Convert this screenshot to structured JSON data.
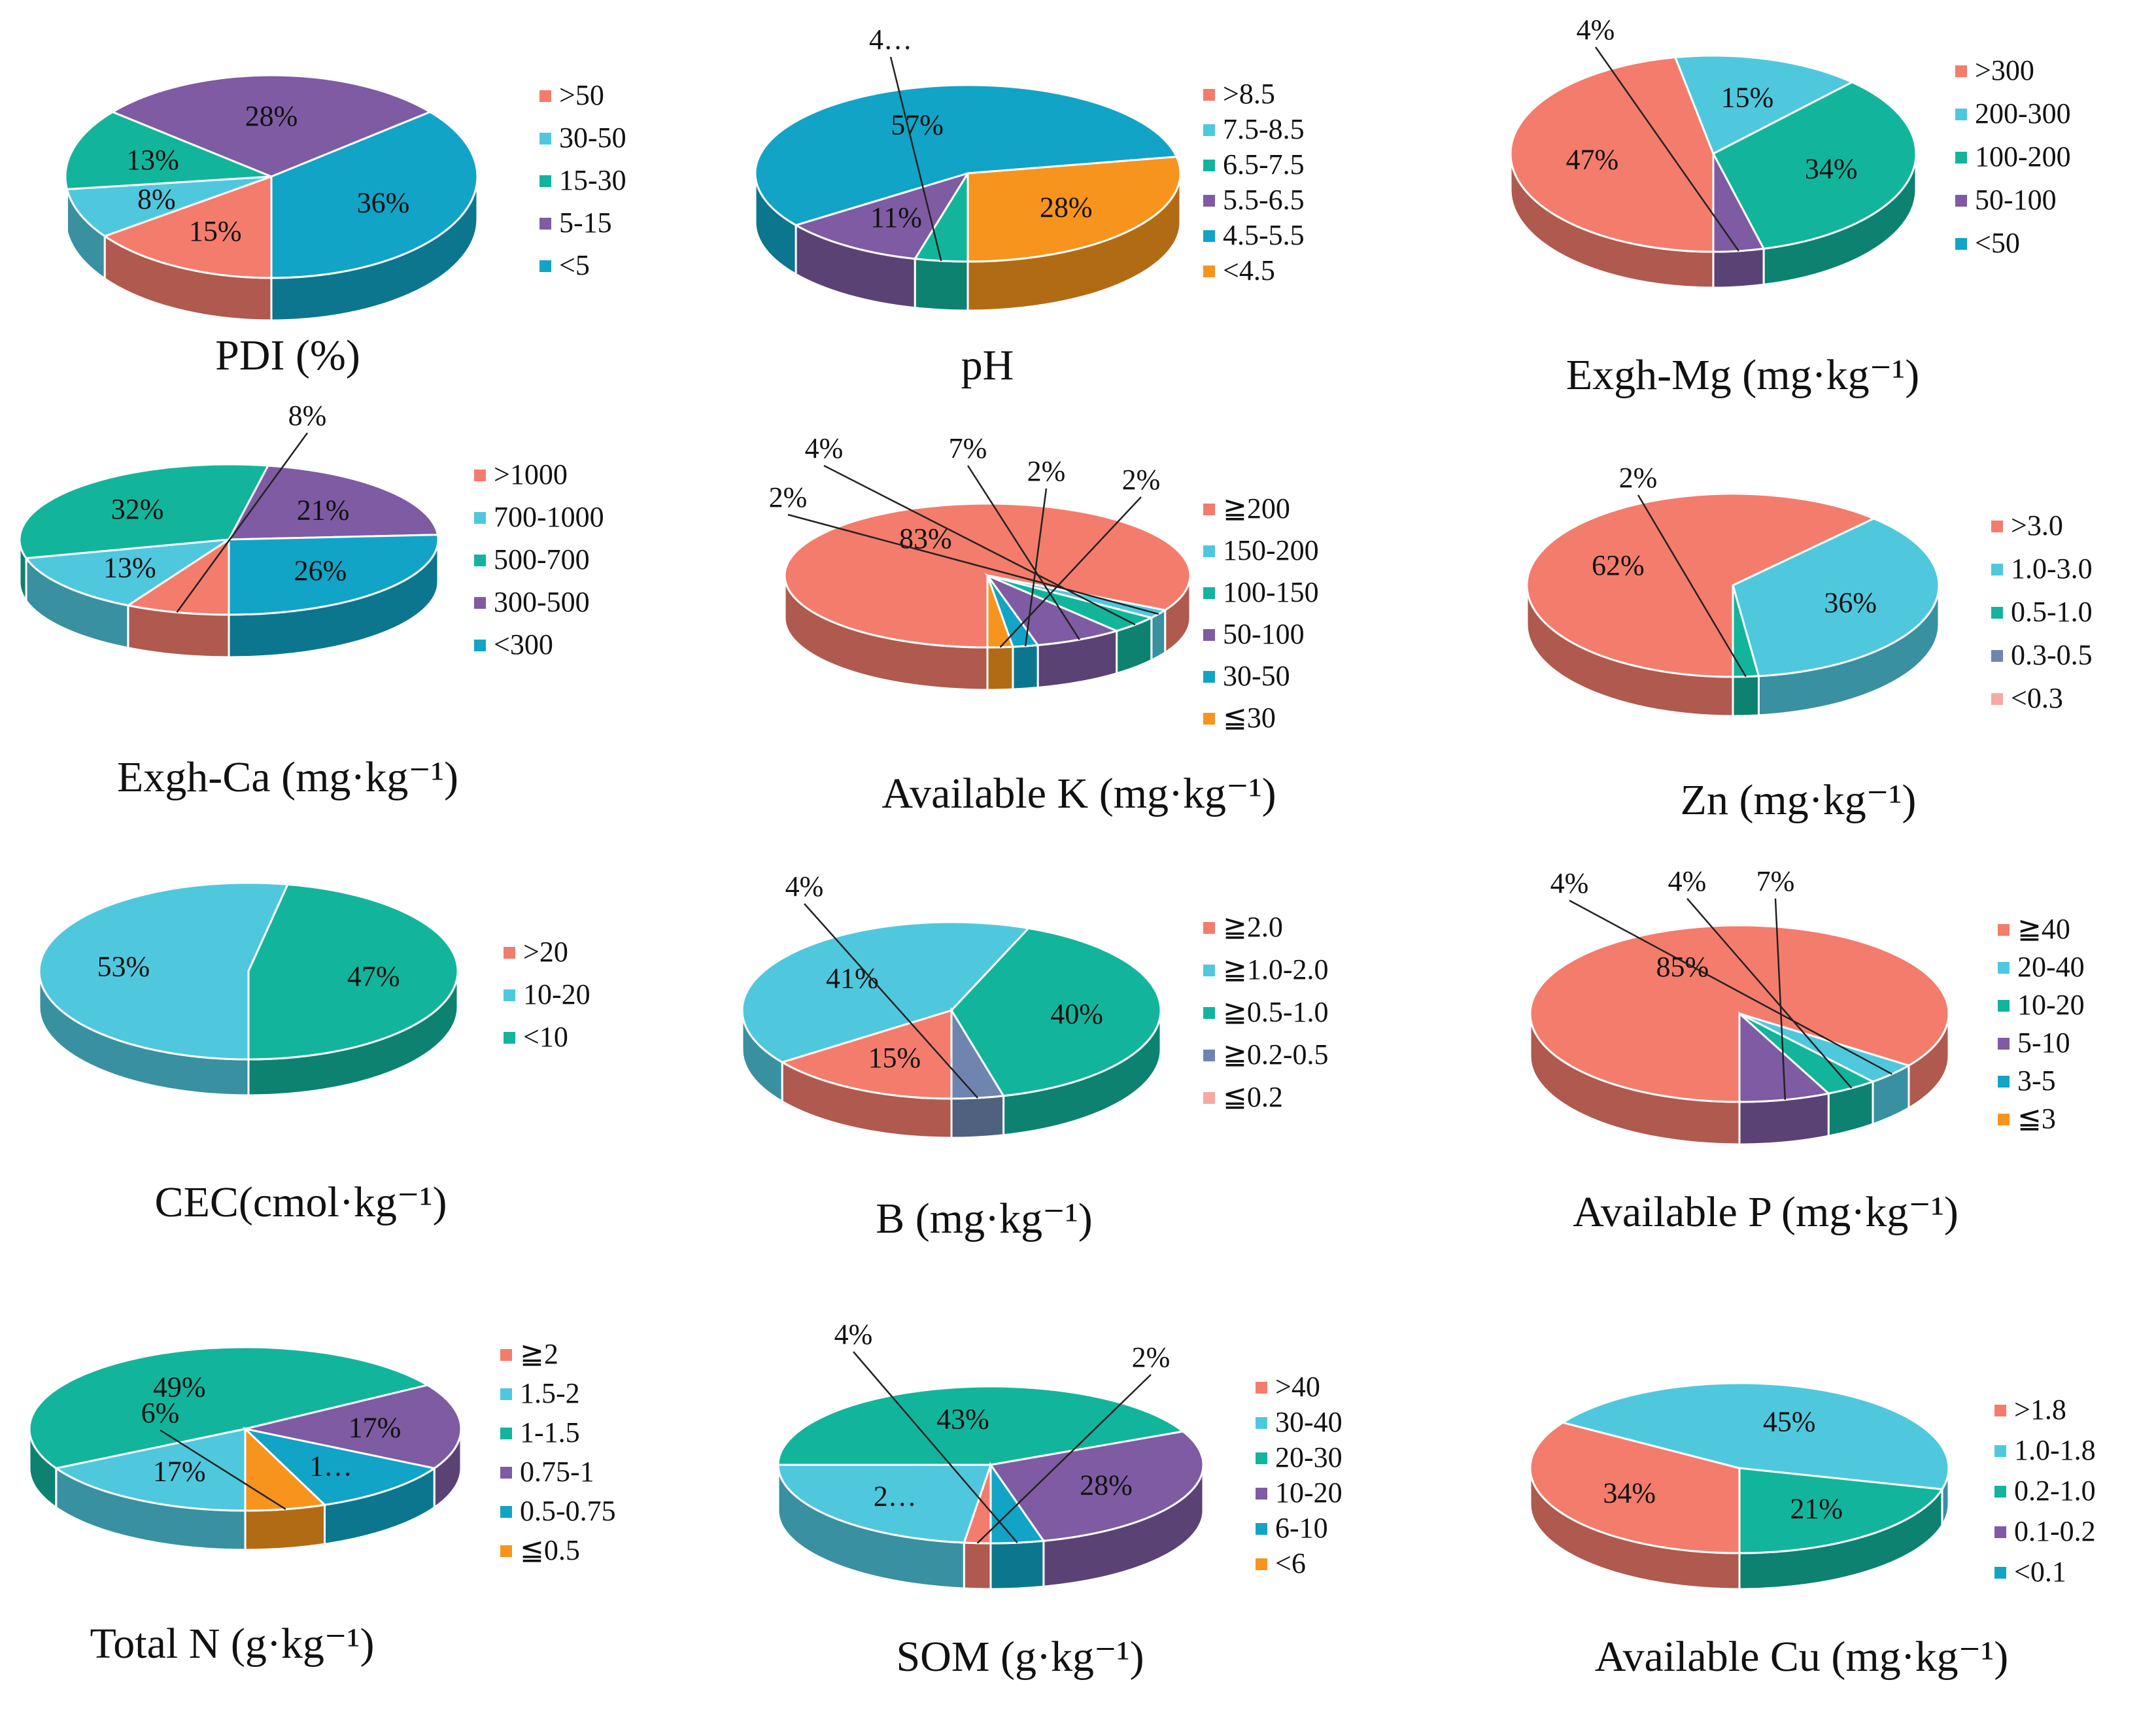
{
  "colors": {
    "salmon": "#F47C6C",
    "lightblue": "#4FC8DE",
    "teal": "#12B59C",
    "purple": "#7E5BA3",
    "blue": "#11A4C6",
    "orange": "#F7941D",
    "slate": "#6F85B0",
    "pink": "#F6A9A3"
  },
  "chart_data": [
    {
      "type": "pie",
      "title": "PDI (%)",
      "legend": [
        ">50",
        "30-50",
        "15-30",
        "5-15",
        "<5"
      ],
      "legend_colors": [
        "salmon",
        "lightblue",
        "teal",
        "purple",
        "blue"
      ],
      "slices": [
        {
          "category": ">50",
          "value": 15,
          "label": "15%"
        },
        {
          "category": "30-50",
          "value": 8,
          "label": "8%"
        },
        {
          "category": "15-30",
          "value": 13,
          "label": "13%"
        },
        {
          "category": "5-15",
          "value": 28,
          "label": "28%"
        },
        {
          "category": "<5",
          "value": 36,
          "label": "36%"
        }
      ]
    },
    {
      "type": "pie",
      "title": "pH",
      "legend": [
        ">8.5",
        "7.5-8.5",
        "6.5-7.5",
        "5.5-6.5",
        "4.5-5.5",
        "<4.5"
      ],
      "legend_colors": [
        "salmon",
        "lightblue",
        "teal",
        "purple",
        "blue",
        "orange"
      ],
      "slices": [
        {
          "category": "6.5-7.5",
          "value": 4,
          "label": "4…"
        },
        {
          "category": "5.5-6.5",
          "value": 11,
          "label": "11%"
        },
        {
          "category": "4.5-5.5",
          "value": 57,
          "label": "57%"
        },
        {
          "category": "<4.5",
          "value": 28,
          "label": "28%"
        }
      ]
    },
    {
      "type": "pie",
      "title": "Exgh-Mg (mg·kg⁻¹)",
      "legend": [
        ">300",
        "200-300",
        "100-200",
        "50-100",
        "<50"
      ],
      "legend_colors": [
        "salmon",
        "lightblue",
        "teal",
        "purple",
        "blue"
      ],
      "slices": [
        {
          "category": ">300",
          "value": 47,
          "label": "47%"
        },
        {
          "category": "200-300",
          "value": 15,
          "label": "15%"
        },
        {
          "category": "100-200",
          "value": 34,
          "label": "34%"
        },
        {
          "category": "50-100",
          "value": 4,
          "label": "4%"
        }
      ]
    },
    {
      "type": "pie",
      "title": "Exgh-Ca (mg·kg⁻¹)",
      "legend": [
        ">1000",
        "700-1000",
        "500-700",
        "300-500",
        "<300"
      ],
      "legend_colors": [
        "salmon",
        "lightblue",
        "teal",
        "purple",
        "blue"
      ],
      "slices": [
        {
          "category": ">1000",
          "value": 8,
          "label": "8%"
        },
        {
          "category": "700-1000",
          "value": 13,
          "label": "13%"
        },
        {
          "category": "500-700",
          "value": 32,
          "label": "32%"
        },
        {
          "category": "300-500",
          "value": 21,
          "label": "21%"
        },
        {
          "category": "<300",
          "value": 26,
          "label": "26%"
        }
      ]
    },
    {
      "type": "pie",
      "title": "Available K (mg·kg⁻¹)",
      "legend": [
        "≧200",
        "150-200",
        "100-150",
        "50-100",
        "30-50",
        "≦30"
      ],
      "legend_colors": [
        "salmon",
        "lightblue",
        "teal",
        "purple",
        "blue",
        "orange"
      ],
      "slices": [
        {
          "category": "≧200",
          "value": 83,
          "label": "83%"
        },
        {
          "category": "150-200",
          "value": 2,
          "label": "2%"
        },
        {
          "category": "100-150",
          "value": 4,
          "label": "4%"
        },
        {
          "category": "50-100",
          "value": 7,
          "label": "7%"
        },
        {
          "category": "30-50",
          "value": 2,
          "label": "2%"
        },
        {
          "category": "≦30",
          "value": 2,
          "label": "2%"
        }
      ]
    },
    {
      "type": "pie",
      "title": "Zn (mg·kg⁻¹)",
      "legend": [
        ">3.0",
        "1.0-3.0",
        "0.5-1.0",
        "0.3-0.5",
        "<0.3"
      ],
      "legend_colors": [
        "salmon",
        "lightblue",
        "teal",
        "slate",
        "pink"
      ],
      "slices": [
        {
          "category": ">3.0",
          "value": 62,
          "label": "62%"
        },
        {
          "category": "1.0-3.0",
          "value": 36,
          "label": "36%"
        },
        {
          "category": "0.5-1.0",
          "value": 2,
          "label": "2%"
        }
      ]
    },
    {
      "type": "pie",
      "title": "CEC(cmol·kg⁻¹)",
      "legend": [
        ">20",
        "10-20",
        "<10"
      ],
      "legend_colors": [
        "salmon",
        "lightblue",
        "teal"
      ],
      "slices": [
        {
          "category": "10-20",
          "value": 53,
          "label": "53%"
        },
        {
          "category": "<10",
          "value": 47,
          "label": "47%"
        }
      ]
    },
    {
      "type": "pie",
      "title": "B (mg·kg⁻¹)",
      "legend": [
        "≧2.0",
        "≧1.0-2.0",
        "≧0.5-1.0",
        "≧0.2-0.5",
        "≦0.2"
      ],
      "legend_colors": [
        "salmon",
        "lightblue",
        "teal",
        "slate",
        "pink"
      ],
      "slices": [
        {
          "category": "≧2.0",
          "value": 15,
          "label": "15%"
        },
        {
          "category": "≧1.0-2.0",
          "value": 41,
          "label": "41%"
        },
        {
          "category": "≧0.5-1.0",
          "value": 40,
          "label": "40%"
        },
        {
          "category": "≧0.2-0.5",
          "value": 4,
          "label": "4%"
        }
      ]
    },
    {
      "type": "pie",
      "title": "Available P (mg·kg⁻¹)",
      "legend": [
        "≧40",
        "20-40",
        "10-20",
        "5-10",
        "3-5",
        "≦3"
      ],
      "legend_colors": [
        "salmon",
        "lightblue",
        "teal",
        "purple",
        "blue",
        "orange"
      ],
      "slices": [
        {
          "category": "≧40",
          "value": 85,
          "label": "85%"
        },
        {
          "category": "20-40",
          "value": 4,
          "label": "4%"
        },
        {
          "category": "10-20",
          "value": 4,
          "label": "4%"
        },
        {
          "category": "5-10",
          "value": 7,
          "label": "7%"
        }
      ]
    },
    {
      "type": "pie",
      "title": "Total N (g·kg⁻¹)",
      "legend": [
        "≧2",
        "1.5-2",
        "1-1.5",
        "0.75-1",
        "0.5-0.75",
        "≦0.5"
      ],
      "legend_colors": [
        "salmon",
        "lightblue",
        "teal",
        "purple",
        "blue",
        "orange"
      ],
      "slices": [
        {
          "category": "1.5-2",
          "value": 17,
          "label": "17%"
        },
        {
          "category": "1-1.5",
          "value": 49,
          "label": "49%"
        },
        {
          "category": "0.75-1",
          "value": 17,
          "label": "17%"
        },
        {
          "category": "0.5-0.75",
          "value": 11,
          "label": "1…"
        },
        {
          "category": "≦0.5",
          "value": 6,
          "label": "6%"
        }
      ]
    },
    {
      "type": "pie",
      "title": "SOM (g·kg⁻¹)",
      "legend": [
        ">40",
        "30-40",
        "20-30",
        "10-20",
        "6-10",
        "<6"
      ],
      "legend_colors": [
        "salmon",
        "lightblue",
        "teal",
        "purple",
        "blue",
        "orange"
      ],
      "slices": [
        {
          "category": ">40",
          "value": 2,
          "label": "2%"
        },
        {
          "category": "30-40",
          "value": 23,
          "label": "2…"
        },
        {
          "category": "20-30",
          "value": 43,
          "label": "43%"
        },
        {
          "category": "10-20",
          "value": 28,
          "label": "28%"
        },
        {
          "category": "6-10",
          "value": 4,
          "label": "4%"
        }
      ]
    },
    {
      "type": "pie",
      "title": "Available Cu (mg·kg⁻¹)",
      "legend": [
        ">1.8",
        "1.0-1.8",
        "0.2-1.0",
        "0.1-0.2",
        "<0.1"
      ],
      "legend_colors": [
        "salmon",
        "lightblue",
        "teal",
        "purple",
        "blue"
      ],
      "slices": [
        {
          "category": ">1.8",
          "value": 34,
          "label": "34%"
        },
        {
          "category": "1.0-1.8",
          "value": 45,
          "label": "45%"
        },
        {
          "category": "0.2-1.0",
          "value": 21,
          "label": "21%"
        }
      ]
    }
  ]
}
